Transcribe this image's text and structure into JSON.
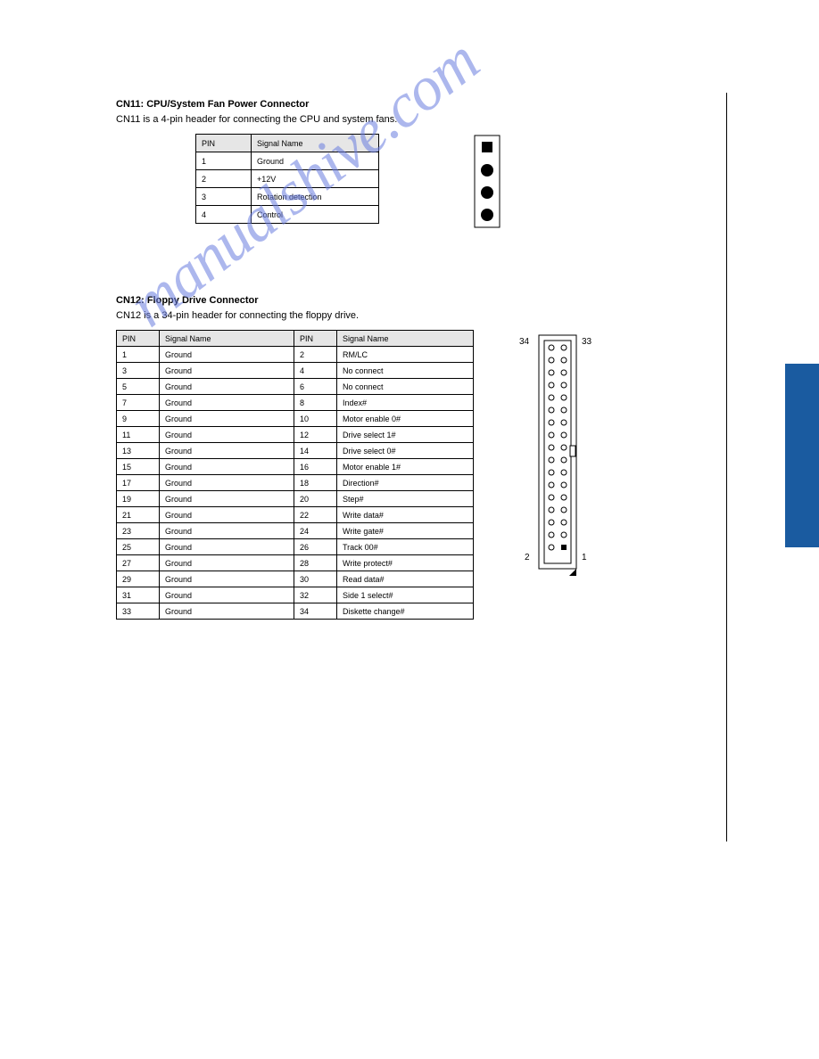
{
  "page": {
    "side_tab_color": "#1a5ba0",
    "background": "#ffffff",
    "watermark_text": "manualshive.com",
    "watermark_color": "#6a7de0"
  },
  "section1": {
    "heading": "CN11: CPU/System Fan Power Connector",
    "subheading": "CN11 is a 4-pin header for connecting the CPU and system fans.",
    "table_headers": [
      "PIN",
      "Signal Name"
    ],
    "rows": [
      [
        "1",
        "Ground"
      ],
      [
        "2",
        "+12V"
      ],
      [
        "3",
        "Rotation detection"
      ],
      [
        "4",
        "Control"
      ]
    ],
    "connector": {
      "border": "#000000",
      "pin1_shape": "square",
      "pin_color": "#000000",
      "bg": "#ffffff",
      "pins": 4
    }
  },
  "section2": {
    "heading": "CN12: Floppy Drive Connector",
    "subheading": "CN12 is a 34-pin header for connecting the floppy drive.",
    "table_headers": [
      "PIN",
      "Signal Name",
      "PIN",
      "Signal Name"
    ],
    "rows": [
      [
        "1",
        "Ground",
        "2",
        "RM/LC"
      ],
      [
        "3",
        "Ground",
        "4",
        "No connect"
      ],
      [
        "5",
        "Ground",
        "6",
        "No connect"
      ],
      [
        "7",
        "Ground",
        "8",
        "Index#"
      ],
      [
        "9",
        "Ground",
        "10",
        "Motor enable 0#"
      ],
      [
        "11",
        "Ground",
        "12",
        "Drive select 1#"
      ],
      [
        "13",
        "Ground",
        "14",
        "Drive select 0#"
      ],
      [
        "15",
        "Ground",
        "16",
        "Motor enable 1#"
      ],
      [
        "17",
        "Ground",
        "18",
        "Direction#"
      ],
      [
        "19",
        "Ground",
        "20",
        "Step#"
      ],
      [
        "21",
        "Ground",
        "22",
        "Write data#"
      ],
      [
        "23",
        "Ground",
        "24",
        "Write gate#"
      ],
      [
        "25",
        "Ground",
        "26",
        "Track 00#"
      ],
      [
        "27",
        "Ground",
        "28",
        "Write protect#"
      ],
      [
        "29",
        "Ground",
        "30",
        "Read data#"
      ],
      [
        "31",
        "Ground",
        "32",
        "Side 1 select#"
      ],
      [
        "33",
        "Ground",
        "34",
        "Diskette change#"
      ]
    ],
    "connector": {
      "pin_total": 34,
      "label_top_left": "34",
      "label_top_right": "33",
      "label_bottom_left": "2",
      "label_bottom_right": "1",
      "border": "#000000",
      "pin_fill": "#000000"
    }
  }
}
